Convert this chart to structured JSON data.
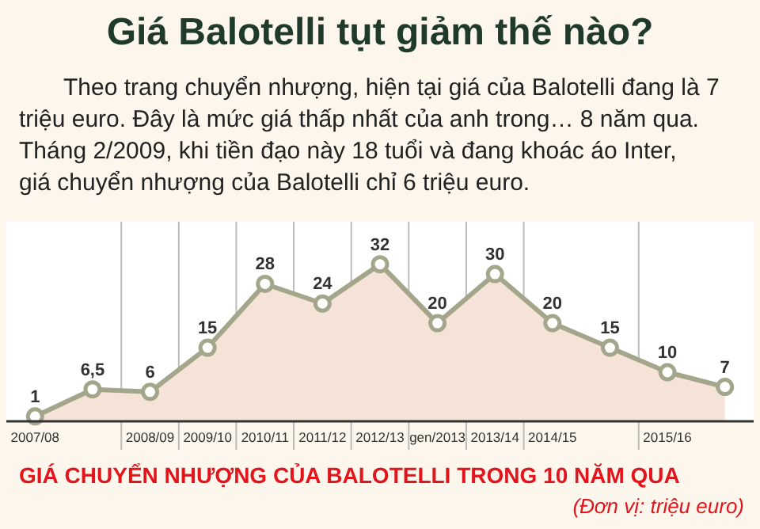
{
  "chart_data": {
    "type": "area",
    "title": "Giá Balotelli tụt giảm thế nào?",
    "subtitle": "Theo trang chuyển nhượng, hiện tại giá của Balotelli đang là 7 triệu euro. Đây là mức giá thấp nhất của anh trong… 8 năm qua. Tháng 2/2009, khi tiền đạo này 18 tuổi và đang khoác áo Inter, giá chuyển nhượng của Balotelli chỉ 6 triệu euro.",
    "categories": [
      "2007/08",
      null,
      "2008/09",
      "2009/10",
      "2010/11",
      "2011/12",
      "2012/13",
      "gen/2013",
      "2013/14",
      "2014/15",
      null,
      "2015/16",
      null
    ],
    "series": [
      {
        "color": "#a3a68a",
        "values": [
          1,
          6.5,
          6,
          15,
          28,
          24,
          32,
          20,
          30,
          20,
          15,
          10,
          7
        ],
        "value_labels": [
          "1",
          "6,5",
          "6",
          "15",
          "28",
          "24",
          "32",
          "20",
          "30",
          "20",
          "15",
          "10",
          "7"
        ]
      }
    ],
    "tick_labels": "x",
    "grid": "x",
    "marker": "circle",
    "annotations": [
      "GIÁ CHUYỂN NHƯỢNG CỦA BALOTELLI TRONG 10 NĂM QUA",
      "(Đơn vị: triệu euro)"
    ]
  }
}
